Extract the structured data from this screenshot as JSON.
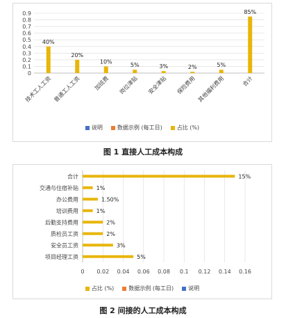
{
  "colors": {
    "primary": "#E8B60A",
    "secondary": "#ED7D31",
    "tertiary": "#4472C4",
    "grid": "#d9d9d9",
    "axis": "#bfbfbf"
  },
  "chart_data": [
    {
      "type": "bar",
      "categories": [
        "技术工人工资",
        "普通工人工资",
        "加班费",
        "岗位津贴",
        "安全津贴",
        "保险费用",
        "其他福利费用",
        "合计"
      ],
      "series": [
        {
          "name": "说明",
          "values": [
            0,
            0,
            0,
            0,
            0,
            0,
            0,
            0
          ]
        },
        {
          "name": "数据示例 (每工日)",
          "values": [
            0,
            0,
            0,
            0,
            0,
            0,
            0,
            0
          ]
        },
        {
          "name": "占比 (%)",
          "values": [
            0.4,
            0.2,
            0.1,
            0.05,
            0.03,
            0.02,
            0.05,
            0.85
          ],
          "data_labels": [
            "40%",
            "20%",
            "10%",
            "5%",
            "3%",
            "2%",
            "5%",
            "85%"
          ]
        }
      ],
      "ylim": [
        0,
        0.9
      ],
      "yticks": [
        "0",
        "0.1",
        "0.2",
        "0.3",
        "0.4",
        "0.5",
        "0.6",
        "0.7",
        "0.8",
        "0.9"
      ],
      "legend": [
        "说明",
        "数据示例 (每工日)",
        "占比 (%)"
      ],
      "legend_position": "bottom",
      "grid": true,
      "caption": "图 1 直接人工成本构成"
    },
    {
      "type": "bar",
      "orientation": "horizontal",
      "categories": [
        "合计",
        "交通与住宿补贴",
        "办公费用",
        "培训费用",
        "后勤支持费用",
        "质检员工资",
        "安全员工资",
        "项目经理工资"
      ],
      "series": [
        {
          "name": "占比 (%)",
          "values": [
            0.15,
            0.01,
            0.015,
            0.01,
            0.02,
            0.02,
            0.03,
            0.05
          ],
          "data_labels": [
            "15%",
            "1%",
            "1.50%",
            "1%",
            "2%",
            "2%",
            "3%",
            "5%"
          ]
        },
        {
          "name": "数据示例 (每工日)",
          "values": [
            0,
            0,
            0,
            0,
            0,
            0,
            0,
            0
          ]
        },
        {
          "name": "说明",
          "values": [
            0,
            0,
            0,
            0,
            0,
            0,
            0,
            0
          ]
        }
      ],
      "xlim": [
        0,
        0.16
      ],
      "xticks": [
        "0",
        "0.02",
        "0.04",
        "0.06",
        "0.08",
        "0.1",
        "0.12",
        "0.14",
        "0.16"
      ],
      "legend": [
        "占比 (%)",
        "数据示例 (每工日)",
        "说明"
      ],
      "legend_position": "bottom",
      "grid": true,
      "caption": "图 2 间接的人工成本构成"
    }
  ]
}
